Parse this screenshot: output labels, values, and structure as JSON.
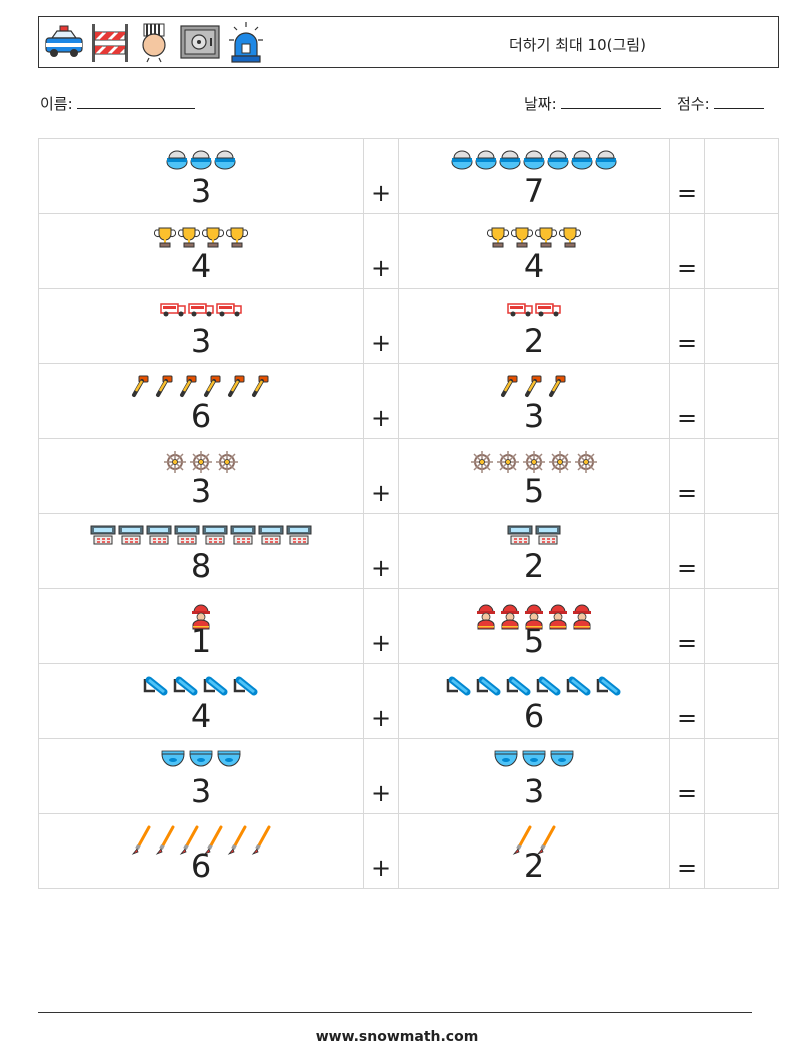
{
  "header": {
    "title": "더하기 최대 10(그림)",
    "icons": [
      "police-car-icon",
      "road-barrier-icon",
      "prisoner-icon",
      "safe-icon",
      "siren-icon"
    ]
  },
  "labels": {
    "name": "이름:",
    "date": "날짜:",
    "score": "점수:"
  },
  "operators": {
    "plus": "+",
    "equals": "="
  },
  "problems": [
    {
      "a": 3,
      "b": 7,
      "a_icon": "helmet-icon",
      "b_icon": "helmet-icon"
    },
    {
      "a": 4,
      "b": 4,
      "a_icon": "trophy-icon",
      "b_icon": "trophy-icon"
    },
    {
      "a": 3,
      "b": 2,
      "a_icon": "fire-truck-icon",
      "b_icon": "fire-truck-icon"
    },
    {
      "a": 6,
      "b": 3,
      "a_icon": "pipe-wrench-icon",
      "b_icon": "pipe-wrench-icon"
    },
    {
      "a": 3,
      "b": 5,
      "a_icon": "ship-wheel-icon",
      "b_icon": "ship-wheel-icon"
    },
    {
      "a": 8,
      "b": 2,
      "a_icon": "fire-alarm-panel-icon",
      "b_icon": "fire-alarm-panel-icon"
    },
    {
      "a": 1,
      "b": 5,
      "a_icon": "firefighter-icon",
      "b_icon": "firefighter-icon"
    },
    {
      "a": 4,
      "b": 6,
      "a_icon": "fire-hose-icon",
      "b_icon": "fire-hose-icon"
    },
    {
      "a": 3,
      "b": 3,
      "a_icon": "fish-bowl-icon",
      "b_icon": "fish-bowl-icon"
    },
    {
      "a": 6,
      "b": 2,
      "a_icon": "paintbrush-icon",
      "b_icon": "paintbrush-icon"
    }
  ],
  "footer": {
    "url": "www.snowmath.com"
  },
  "colors": {
    "border": "#d8d8d8",
    "text": "#222222"
  }
}
